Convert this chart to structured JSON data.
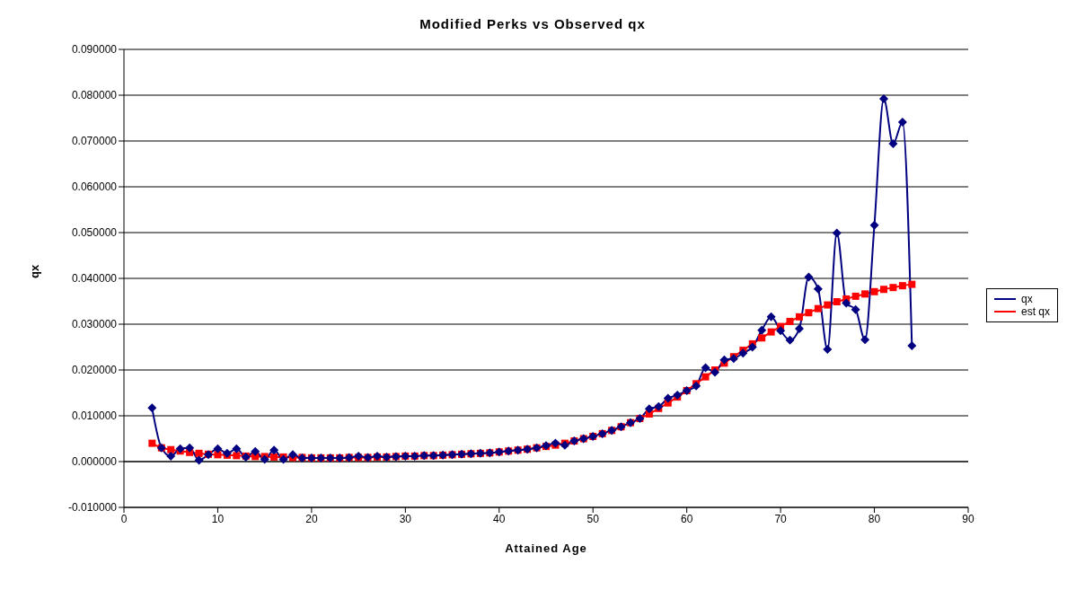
{
  "chart_data": {
    "type": "line",
    "title": "Modified Perks vs Observed qx",
    "xlabel": "Attained Age",
    "ylabel": "qx",
    "x": [
      3,
      4,
      5,
      6,
      7,
      8,
      9,
      10,
      11,
      12,
      13,
      14,
      15,
      16,
      17,
      18,
      19,
      20,
      21,
      22,
      23,
      24,
      25,
      26,
      27,
      28,
      29,
      30,
      31,
      32,
      33,
      34,
      35,
      36,
      37,
      38,
      39,
      40,
      41,
      42,
      43,
      44,
      45,
      46,
      47,
      48,
      49,
      50,
      51,
      52,
      53,
      54,
      55,
      56,
      57,
      58,
      59,
      60,
      61,
      62,
      63,
      64,
      65,
      66,
      67,
      68,
      69,
      70,
      71,
      72,
      73,
      74,
      75,
      76,
      77,
      78,
      79,
      80,
      81,
      82,
      83,
      84
    ],
    "series": [
      {
        "name": "qx",
        "color": "#000080",
        "marker": "diamond",
        "values": [
          0.0117,
          0.003,
          0.0012,
          0.0028,
          0.003,
          0.0003,
          0.0015,
          0.0028,
          0.0018,
          0.0028,
          0.001,
          0.0022,
          0.0005,
          0.0025,
          0.0005,
          0.0015,
          0.0008,
          0.0008,
          0.0008,
          0.0008,
          0.0008,
          0.0009,
          0.0012,
          0.0009,
          0.0012,
          0.001,
          0.0011,
          0.0012,
          0.0012,
          0.0013,
          0.0013,
          0.0014,
          0.0015,
          0.0016,
          0.0017,
          0.0018,
          0.0019,
          0.0021,
          0.0023,
          0.0025,
          0.0027,
          0.003,
          0.0035,
          0.004,
          0.0036,
          0.0045,
          0.005,
          0.0055,
          0.0061,
          0.0068,
          0.0076,
          0.0085,
          0.0094,
          0.0115,
          0.012,
          0.0138,
          0.0145,
          0.0155,
          0.0165,
          0.0205,
          0.0195,
          0.0222,
          0.0225,
          0.0237,
          0.025,
          0.0287,
          0.0316,
          0.0286,
          0.0265,
          0.029,
          0.0403,
          0.0377,
          0.0245,
          0.0499,
          0.0346,
          0.0332,
          0.0266,
          0.0516,
          0.0792,
          0.0694,
          0.0741,
          0.0253
        ]
      },
      {
        "name": "est qx",
        "color": "#ff0000",
        "marker": "square",
        "values": [
          0.004,
          0.003,
          0.0026,
          0.0023,
          0.002,
          0.0018,
          0.0016,
          0.0015,
          0.0014,
          0.0013,
          0.0012,
          0.0011,
          0.0011,
          0.001,
          0.001,
          0.0009,
          0.0009,
          0.0008,
          0.0008,
          0.0008,
          0.0008,
          0.0009,
          0.0009,
          0.0009,
          0.001,
          0.001,
          0.0011,
          0.0012,
          0.0012,
          0.0013,
          0.0013,
          0.0014,
          0.0015,
          0.0016,
          0.0017,
          0.0018,
          0.0019,
          0.0021,
          0.0023,
          0.0025,
          0.0027,
          0.003,
          0.0033,
          0.0036,
          0.004,
          0.0045,
          0.005,
          0.0055,
          0.0061,
          0.0068,
          0.0076,
          0.0085,
          0.0094,
          0.0104,
          0.0116,
          0.0128,
          0.0141,
          0.0155,
          0.017,
          0.0185,
          0.02,
          0.0215,
          0.0229,
          0.0243,
          0.0257,
          0.027,
          0.0283,
          0.0295,
          0.0306,
          0.0316,
          0.0325,
          0.0334,
          0.0342,
          0.0349,
          0.0355,
          0.0361,
          0.0366,
          0.0371,
          0.0376,
          0.038,
          0.0384,
          0.0387
        ]
      }
    ],
    "xlim": [
      0,
      90
    ],
    "xticks": [
      0,
      10,
      20,
      30,
      40,
      50,
      60,
      70,
      80,
      90
    ],
    "ylim": [
      -0.01,
      0.09
    ],
    "yticks": [
      {
        "value": -0.01,
        "label": "-0.010000"
      },
      {
        "value": 0,
        "label": "0.000000"
      },
      {
        "value": 0.01,
        "label": "0.010000"
      },
      {
        "value": 0.02,
        "label": "0.020000"
      },
      {
        "value": 0.03,
        "label": "0.030000"
      },
      {
        "value": 0.04,
        "label": "0.040000"
      },
      {
        "value": 0.05,
        "label": "0.050000"
      },
      {
        "value": 0.06,
        "label": "0.060000"
      },
      {
        "value": 0.07,
        "label": "0.070000"
      },
      {
        "value": 0.08,
        "label": "0.080000"
      },
      {
        "value": 0.09,
        "label": "0.090000"
      }
    ],
    "grid": "y",
    "legend": "right",
    "line_style": "solid"
  }
}
